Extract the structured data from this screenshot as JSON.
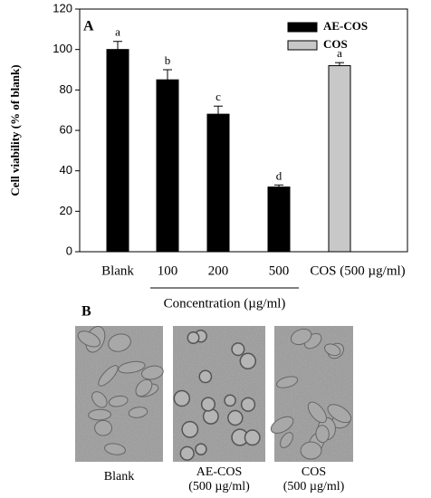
{
  "chart_data": {
    "type": "bar",
    "panel_label": "A",
    "ylabel": "Cell viability (% of blank)",
    "xlabel": "Concentration (µg/ml)",
    "categories": [
      "Blank",
      "100",
      "200",
      "500",
      "COS (500 µg/ml)"
    ],
    "series": [
      {
        "name": "AE-COS",
        "color": "#000000",
        "values": [
          100,
          85,
          68,
          32,
          null
        ],
        "errors": [
          4,
          5,
          4,
          1,
          null
        ],
        "labels": [
          "a",
          "b",
          "c",
          "d",
          null
        ]
      },
      {
        "name": "COS",
        "color": "#c8c8c8",
        "values": [
          null,
          null,
          null,
          null,
          92
        ],
        "errors": [
          null,
          null,
          null,
          null,
          1.5
        ],
        "labels": [
          null,
          null,
          null,
          null,
          "a"
        ]
      }
    ],
    "ylim": [
      0,
      120
    ],
    "yticks": [
      0,
      20,
      40,
      60,
      80,
      100,
      120
    ],
    "legend": "upper right"
  },
  "panel_b": {
    "label": "B",
    "images": [
      {
        "caption": [
          "Blank"
        ]
      },
      {
        "caption": [
          "AE-COS",
          "(500 µg/ml)"
        ]
      },
      {
        "caption": [
          "COS",
          "(500 µg/ml)"
        ]
      }
    ]
  }
}
